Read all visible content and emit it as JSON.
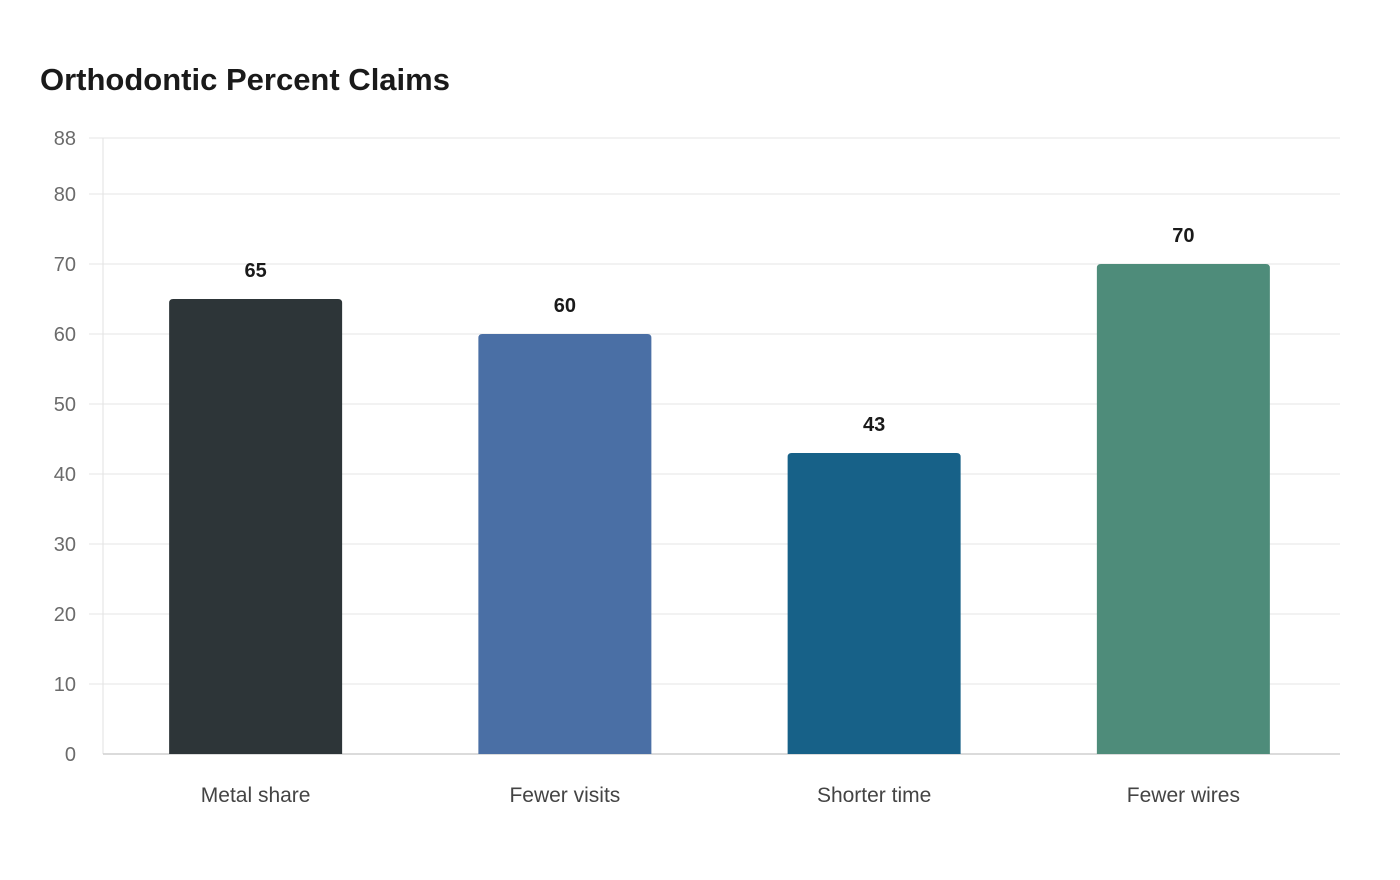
{
  "chart_data": {
    "type": "bar",
    "title": "Orthodontic Percent Claims",
    "categories": [
      "Metal share",
      "Fewer visits",
      "Shorter time",
      "Fewer wires"
    ],
    "values": [
      65,
      60,
      43,
      70
    ],
    "colors": [
      "#2d3538",
      "#4a6fa5",
      "#176188",
      "#4e8c7a"
    ],
    "ylim": [
      0,
      88
    ],
    "yticks": [
      0,
      10,
      20,
      30,
      40,
      50,
      60,
      70,
      80,
      88
    ],
    "xlabel": "",
    "ylabel": "",
    "grid": true,
    "legend": "none"
  }
}
